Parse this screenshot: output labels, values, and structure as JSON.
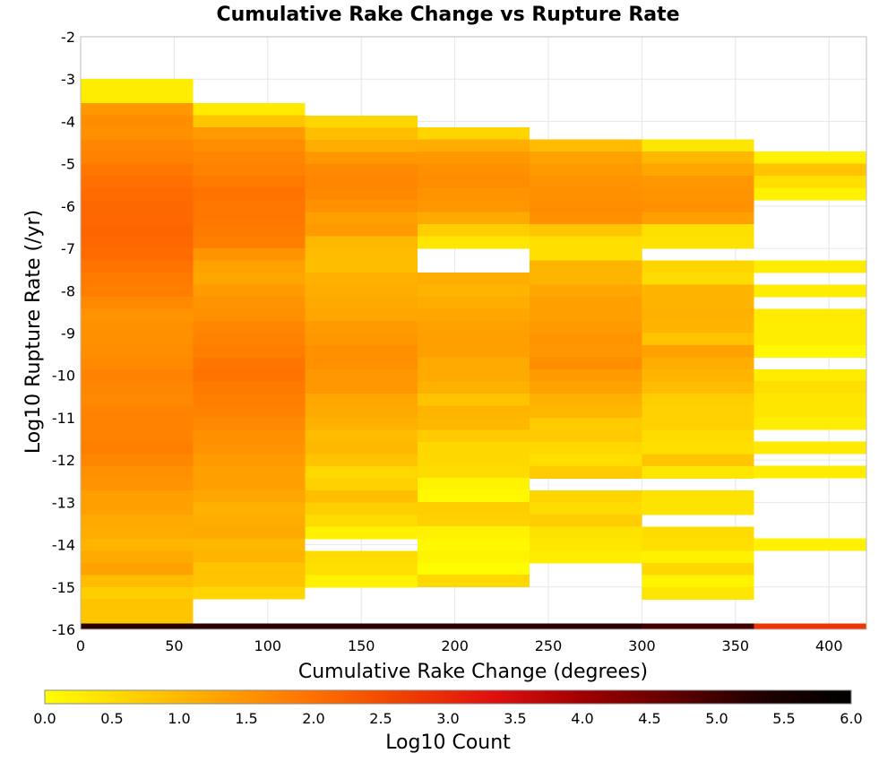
{
  "chart_data": {
    "type": "heatmap",
    "title": "Cumulative Rake Change vs Rupture Rate",
    "xlabel": "Cumulative Rake Change (degrees)",
    "ylabel": "Log10 Rupture Rate (/yr)",
    "colorbar_label": "Log10 Count",
    "xlim": [
      0,
      420
    ],
    "ylim": [
      -16,
      -2
    ],
    "x_ticks": [
      "0",
      "50",
      "100",
      "150",
      "200",
      "250",
      "300",
      "350",
      "400"
    ],
    "y_ticks": [
      "-2",
      "-3",
      "-4",
      "-5",
      "-6",
      "-7",
      "-8",
      "-9",
      "-10",
      "-11",
      "-12",
      "-13",
      "-14",
      "-15",
      "-16"
    ],
    "colorbar_range": [
      0,
      6
    ],
    "colorbar_ticks": [
      "0.0",
      "0.5",
      "1.0",
      "1.5",
      "2.0",
      "2.5",
      "3.0",
      "3.5",
      "4.0",
      "4.5",
      "5.0",
      "5.5",
      "6.0"
    ],
    "colormap": [
      "#ffff00",
      "#ffd000",
      "#ffa000",
      "#ff7000",
      "#f04000",
      "#e01010",
      "#a00000",
      "#600000",
      "#200000",
      "#000000"
    ],
    "x_bin_width": 60,
    "y_bin_height": 0.2857,
    "grid": true,
    "bins": [
      {
        "x0": 0,
        "y_top": -3.0,
        "values": [
          0.25,
          0.25,
          1.45,
          1.6,
          1.55,
          1.7,
          1.75,
          1.9,
          2.0,
          2.05,
          2.1,
          2.1,
          2.15,
          2.1,
          2.05,
          1.95,
          1.85,
          1.8,
          1.65,
          1.5,
          1.55,
          1.55,
          1.6,
          1.65,
          1.75,
          1.7,
          1.65,
          1.75,
          1.75,
          1.75,
          1.8,
          1.7,
          1.55,
          1.5,
          1.35,
          1.35,
          1.2,
          1.15,
          1.05,
          1.2,
          1.3,
          0.95,
          0.7,
          0.85,
          0.8,
          0.5
        ]
      },
      {
        "x0": 0,
        "y_top": -15.86,
        "values": [
          5.25
        ]
      },
      {
        "x0": 60,
        "y_top": -3.57,
        "values": [
          0.3,
          0.8,
          1.4,
          1.6,
          1.7,
          1.75,
          1.85,
          1.95,
          1.9,
          1.9,
          1.85,
          1.8,
          1.5,
          1.3,
          1.25,
          1.4,
          1.5,
          1.55,
          1.7,
          1.75,
          1.8,
          1.9,
          1.95,
          1.85,
          1.8,
          1.75,
          1.65,
          1.55,
          1.5,
          1.4,
          1.35,
          1.35,
          1.25,
          1.1,
          1.15,
          1.2,
          1.0,
          1.05,
          0.85,
          0.85,
          0.6
        ]
      },
      {
        "x0": 60,
        "y_top": -15.86,
        "values": [
          5.25
        ]
      },
      {
        "x0": 120,
        "y_top": -3.86,
        "values": [
          0.6,
          0.9,
          1.15,
          1.45,
          1.65,
          1.7,
          1.65,
          1.55,
          1.35,
          1.4,
          1.0,
          0.95,
          0.9,
          1.1,
          1.15,
          1.2,
          1.25,
          1.4,
          1.45,
          1.55,
          1.55,
          1.45,
          1.45,
          1.25,
          1.2,
          1.1,
          0.95,
          1.0,
          0.85,
          0.55,
          0.65,
          0.9,
          0.7,
          0.5,
          0.2,
          null,
          0.5,
          0.45,
          0.2
        ]
      },
      {
        "x0": 120,
        "y_top": -15.86,
        "values": [
          5.25
        ]
      },
      {
        "x0": 180,
        "y_top": -4.14,
        "values": [
          0.6,
          1.15,
          1.45,
          1.55,
          1.6,
          1.5,
          1.45,
          1.2,
          0.7,
          0.35,
          null,
          null,
          1.15,
          1.05,
          1.15,
          1.25,
          1.3,
          1.35,
          1.35,
          1.2,
          1.2,
          1.1,
          0.85,
          1.05,
          1.0,
          0.75,
          0.55,
          0.55,
          0.5,
          0.15,
          0.1,
          0.7,
          0.65,
          0.2,
          0.1,
          0.15,
          0.05,
          0.55
        ]
      },
      {
        "x0": 180,
        "y_top": -15.86,
        "values": [
          5.25
        ]
      },
      {
        "x0": 240,
        "y_top": -4.43,
        "values": [
          0.95,
          1.3,
          1.4,
          1.5,
          1.55,
          1.6,
          1.55,
          0.8,
          0.45,
          0.45,
          1.05,
          1.05,
          1.25,
          1.35,
          1.35,
          1.4,
          1.5,
          1.45,
          1.6,
          1.4,
          1.3,
          1.1,
          1.0,
          0.75,
          0.75,
          0.55,
          0.45,
          0.75,
          null,
          0.6,
          0.5,
          0.7,
          0.4,
          0.35,
          0.25
        ]
      },
      {
        "x0": 240,
        "y_top": -15.86,
        "values": [
          5.25
        ]
      },
      {
        "x0": 300,
        "y_top": -4.43,
        "values": [
          0.35,
          1.0,
          1.25,
          1.45,
          1.5,
          1.55,
          1.35,
          0.45,
          0.4,
          null,
          0.6,
          0.5,
          1.05,
          1.05,
          1.1,
          1.05,
          0.85,
          1.3,
          1.15,
          1.05,
          0.95,
          0.7,
          0.65,
          0.65,
          0.5,
          0.45,
          0.8,
          0.35,
          null,
          0.4,
          0.4,
          null,
          0.5,
          0.45,
          0.2,
          0.55,
          0.15,
          0.35
        ]
      },
      {
        "x0": 300,
        "y_top": -15.86,
        "values": [
          5.0
        ]
      },
      {
        "x0": 360,
        "y_top": -4.71,
        "values": [
          0.2,
          0.85,
          0.45,
          0.2,
          null,
          null,
          null,
          null,
          null,
          0.25,
          null,
          0.25,
          null,
          0.3,
          0.25,
          0.25,
          0.1,
          null,
          0.25,
          0.45,
          0.35,
          0.35,
          0.25,
          null,
          0.3,
          null,
          0.25,
          null,
          null,
          null,
          null,
          null,
          0.2
        ]
      },
      {
        "x0": 360,
        "y_top": -15.86,
        "values": [
          2.8
        ]
      }
    ]
  }
}
